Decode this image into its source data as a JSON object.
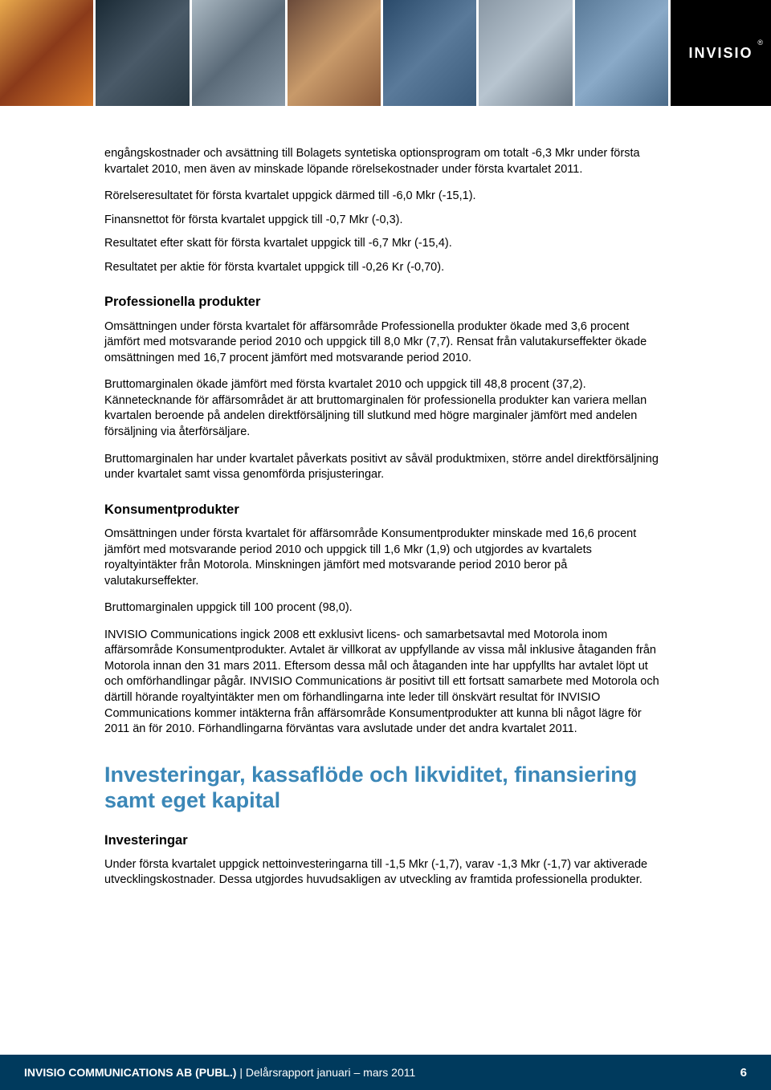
{
  "banner": {
    "image_colors": [
      "#c97a2e",
      "#3b4a55",
      "#6b7a88",
      "#8a5a3a",
      "#4a6a8a",
      "#7a8895",
      "#6b8aa8"
    ],
    "logo_text": "INVISIO",
    "logo_reg": "®"
  },
  "body": {
    "p1": "engångskostnader och avsättning till Bolagets syntetiska optionsprogram om totalt -6,3 Mkr under första kvartalet 2010, men även av minskade löpande rörelsekostnader under första kvartalet 2011.",
    "p2": "Rörelseresultatet för första kvartalet uppgick därmed till -6,0 Mkr (-15,1).",
    "p3": "Finansnettot för första kvartalet uppgick till -0,7 Mkr (-0,3).",
    "p4": "Resultatet efter skatt för första kvartalet uppgick till -6,7 Mkr (-15,4).",
    "p5": "Resultatet per aktie för första kvartalet uppgick till -0,26 Kr (-0,70).",
    "h_prof": "Professionella produkter",
    "p6": "Omsättningen under första kvartalet för affärsområde Professionella produkter ökade med 3,6 procent jämfört med motsvarande period 2010 och uppgick till 8,0 Mkr (7,7). Rensat från valutakurseffekter ökade omsättningen med 16,7 procent jämfört med motsvarande period 2010.",
    "p7": "Bruttomarginalen ökade jämfört med första kvartalet 2010 och uppgick till 48,8 procent (37,2). Kännetecknande för affärsområdet är att bruttomarginalen för professionella produkter kan variera mellan kvartalen beroende på andelen direktförsäljning till slutkund med högre marginaler jämfört med andelen försäljning via återförsäljare.",
    "p8": "Bruttomarginalen har under kvartalet påverkats positivt av såväl produktmixen, större andel direktförsäljning under kvartalet samt vissa genomförda prisjusteringar.",
    "h_kons": "Konsumentprodukter",
    "p9": "Omsättningen under första kvartalet för affärsområde Konsumentprodukter minskade med 16,6 procent jämfört med motsvarande period 2010 och uppgick till 1,6 Mkr (1,9) och utgjordes av kvartalets royaltyintäkter från Motorola. Minskningen jämfört med motsvarande period 2010 beror på valutakurseffekter.",
    "p10": "Bruttomarginalen uppgick till 100 procent (98,0).",
    "p11": "INVISIO Communications ingick 2008 ett exklusivt licens- och samarbetsavtal med Motorola inom affärsområde Konsumentprodukter. Avtalet är villkorat av uppfyllande av vissa mål inklusive åtaganden från Motorola innan den 31 mars 2011. Eftersom dessa mål och åtaganden inte har uppfyllts har avtalet löpt ut och omförhandlingar pågår. INVISIO Communications är positivt till ett fortsatt samarbete med Motorola och därtill hörande royaltyintäkter men om förhandlingarna inte leder till önskvärt resultat för INVISIO Communications kommer intäkterna från affärsområde Konsumentprodukter att kunna bli något lägre för 2011 än för 2010. Förhandlingarna förväntas vara avslutade under det andra kvartalet 2011.",
    "h_inv": "Investeringar, kassaflöde och likviditet, finansiering samt eget kapital",
    "h_inv_sub": "Investeringar",
    "p12": "Under första kvartalet uppgick nettoinvesteringarna till -1,5 Mkr (-1,7), varav -1,3 Mkr (-1,7) var aktiverade utvecklingskostnader. Dessa utgjordes huvudsakligen av utveckling av framtida professionella produkter."
  },
  "footer": {
    "company": "INVISIO COMMUNICATIONS AB (PUBL.)",
    "sep": " | ",
    "report": "Delårsrapport januari – mars 2011",
    "page": "6"
  },
  "colors": {
    "section_head": "#3b87b7",
    "footer_bg": "#003a5d",
    "text": "#000000",
    "footer_text": "#ffffff"
  }
}
